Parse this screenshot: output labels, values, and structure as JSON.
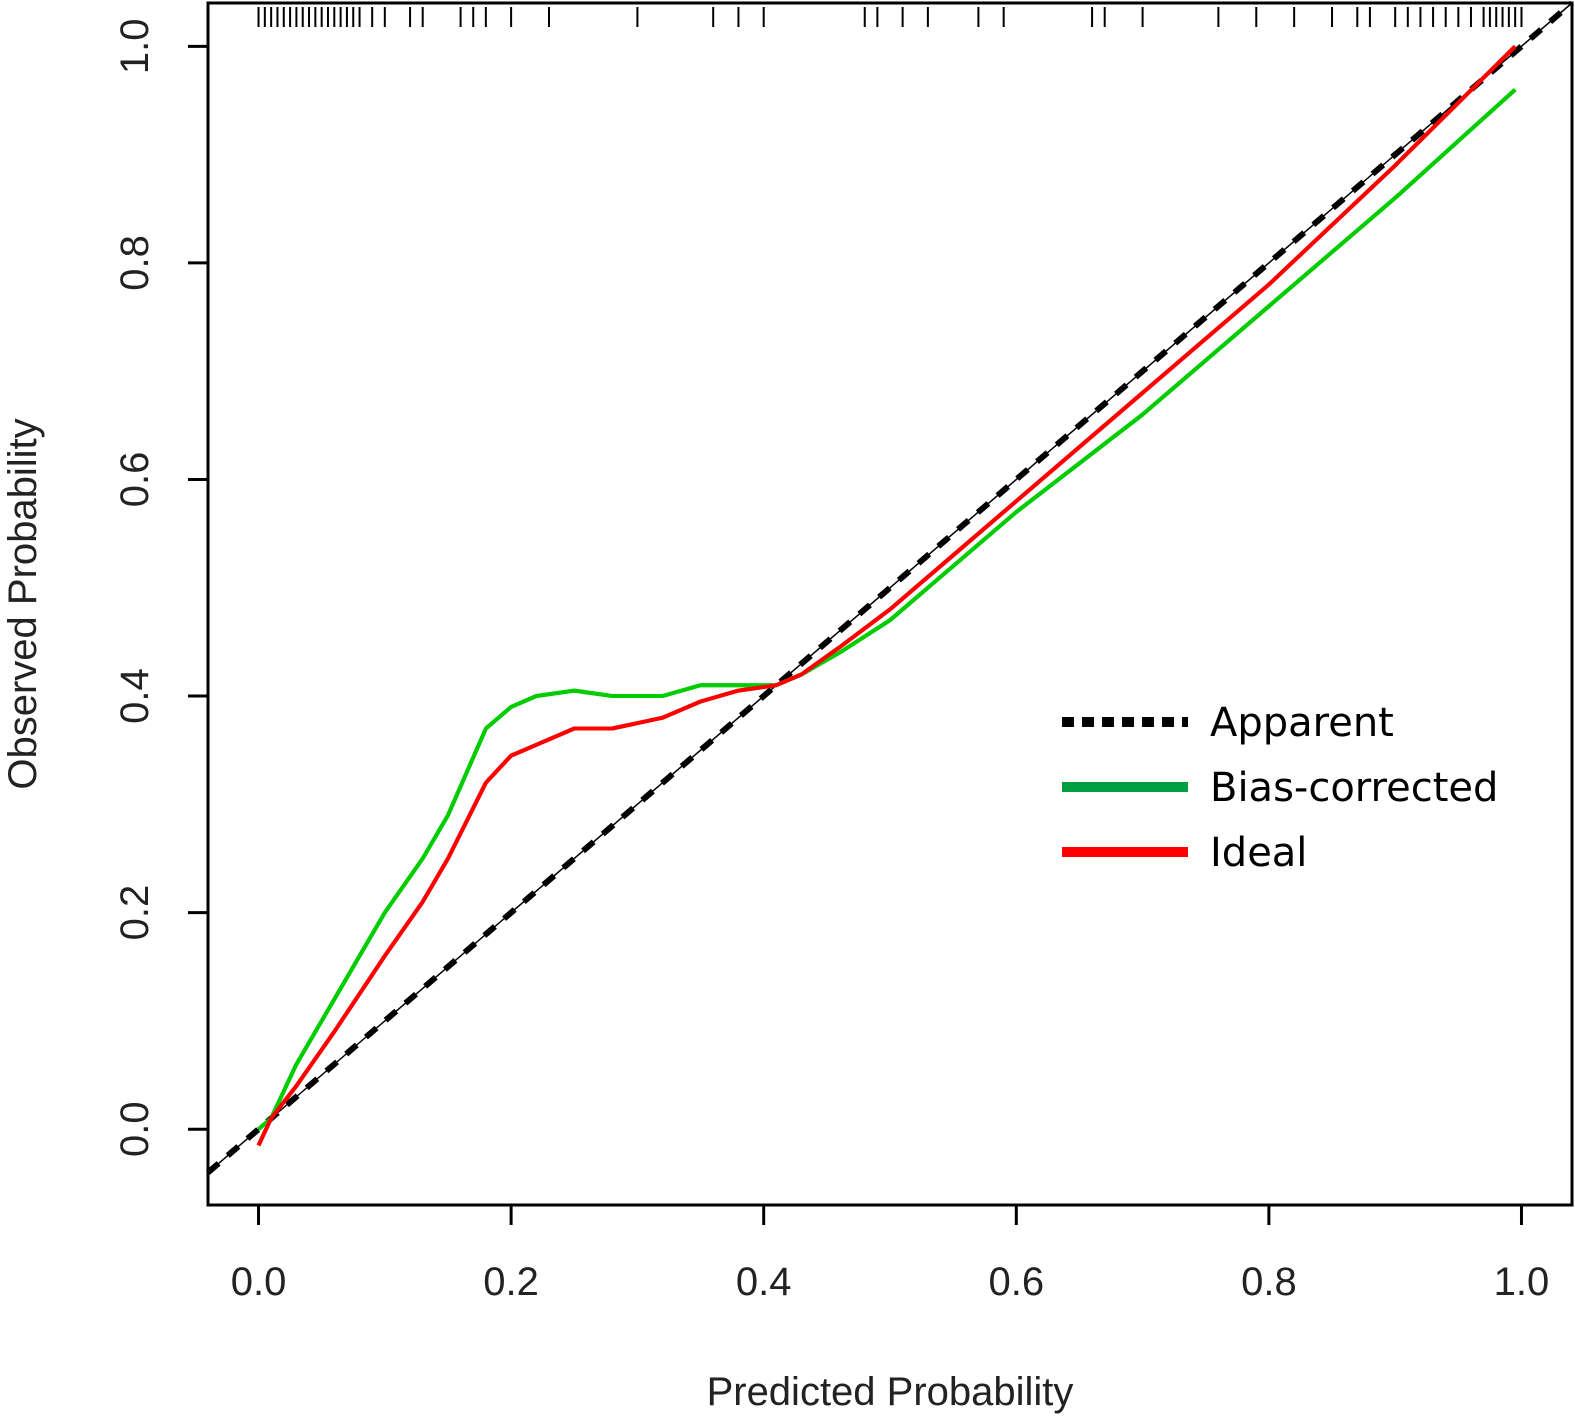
{
  "chart_data": {
    "type": "line",
    "xlabel": "Predicted Probability",
    "ylabel": "Observed Probability",
    "xlim": [
      -0.04,
      1.04
    ],
    "ylim": [
      -0.07,
      1.04
    ],
    "xticks": [
      "0.0",
      "0.2",
      "0.4",
      "0.6",
      "0.8",
      "1.0"
    ],
    "yticks": [
      "0.0",
      "0.2",
      "0.4",
      "0.6",
      "0.8",
      "1.0"
    ],
    "legend_position": "center-right",
    "series": [
      {
        "name": "Apparent",
        "style": "dashed",
        "color": "#000000",
        "x": [
          -0.04,
          1.04
        ],
        "y": [
          -0.04,
          1.04
        ]
      },
      {
        "name": "Bias-corrected",
        "style": "solid",
        "color": "#00cc00",
        "x": [
          0.0,
          0.01,
          0.03,
          0.06,
          0.1,
          0.13,
          0.15,
          0.18,
          0.2,
          0.22,
          0.25,
          0.28,
          0.32,
          0.35,
          0.38,
          0.41,
          0.43,
          0.46,
          0.5,
          0.55,
          0.6,
          0.7,
          0.8,
          0.9,
          0.995
        ],
        "y": [
          0.0,
          0.01,
          0.06,
          0.12,
          0.2,
          0.25,
          0.29,
          0.37,
          0.39,
          0.4,
          0.405,
          0.4,
          0.4,
          0.41,
          0.41,
          0.41,
          0.42,
          0.44,
          0.47,
          0.52,
          0.57,
          0.66,
          0.76,
          0.86,
          0.96
        ]
      },
      {
        "name": "Ideal",
        "style": "solid",
        "color": "#ff0000",
        "x": [
          0.0,
          0.01,
          0.03,
          0.06,
          0.1,
          0.13,
          0.15,
          0.18,
          0.2,
          0.22,
          0.25,
          0.28,
          0.32,
          0.35,
          0.38,
          0.41,
          0.43,
          0.46,
          0.5,
          0.55,
          0.6,
          0.7,
          0.8,
          0.9,
          0.995
        ],
        "y": [
          -0.015,
          0.01,
          0.04,
          0.09,
          0.16,
          0.21,
          0.25,
          0.32,
          0.345,
          0.355,
          0.37,
          0.37,
          0.38,
          0.395,
          0.405,
          0.41,
          0.42,
          0.445,
          0.48,
          0.53,
          0.58,
          0.68,
          0.78,
          0.89,
          1.0
        ]
      }
    ],
    "rug": [
      0.0,
      0.005,
      0.01,
      0.015,
      0.02,
      0.025,
      0.03,
      0.035,
      0.04,
      0.045,
      0.05,
      0.055,
      0.06,
      0.065,
      0.07,
      0.075,
      0.08,
      0.09,
      0.1,
      0.12,
      0.13,
      0.16,
      0.17,
      0.18,
      0.2,
      0.23,
      0.3,
      0.36,
      0.38,
      0.4,
      0.48,
      0.49,
      0.51,
      0.53,
      0.57,
      0.59,
      0.66,
      0.67,
      0.7,
      0.76,
      0.79,
      0.82,
      0.85,
      0.87,
      0.88,
      0.9,
      0.91,
      0.92,
      0.93,
      0.94,
      0.95,
      0.96,
      0.97,
      0.975,
      0.98,
      0.985,
      0.99,
      0.995,
      1.0
    ]
  }
}
